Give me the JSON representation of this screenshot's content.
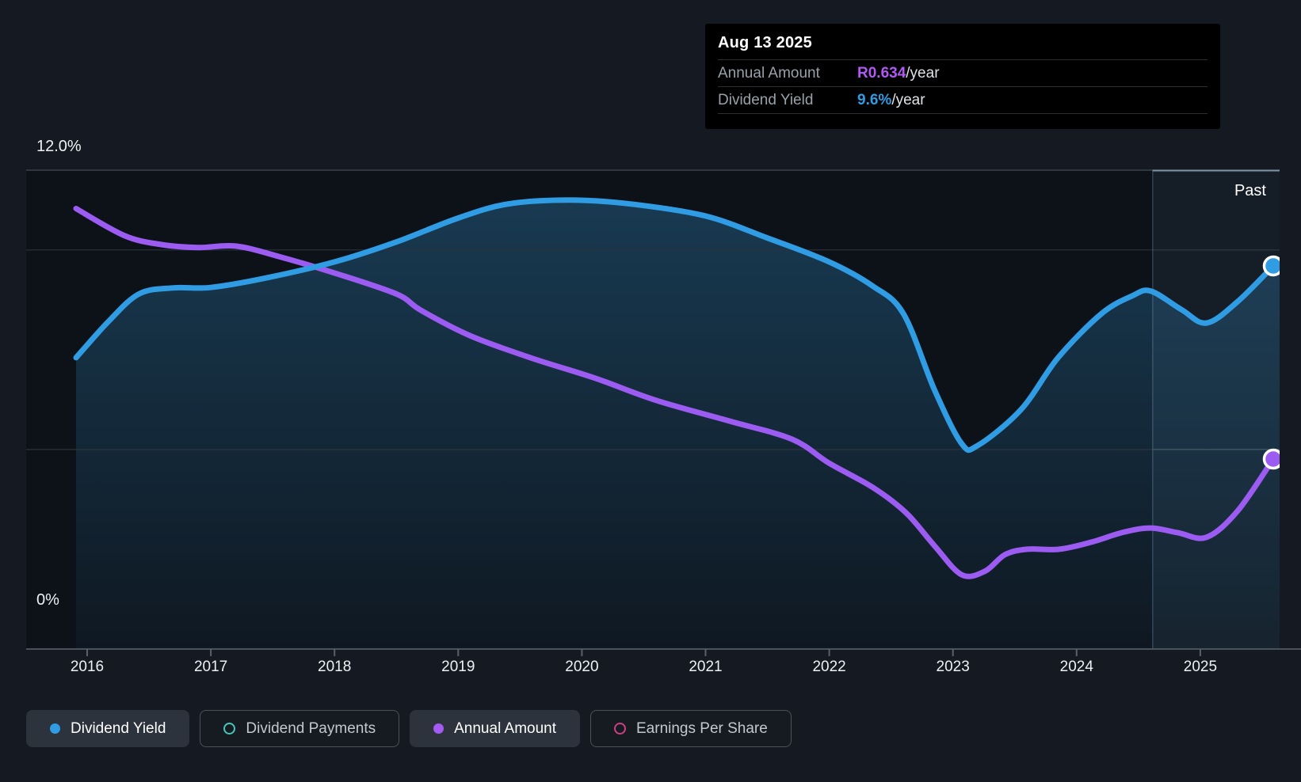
{
  "tooltip": {
    "date": "Aug 13 2025",
    "rows": [
      {
        "label": "Annual Amount",
        "value": "R0.634",
        "suffix": "/year",
        "color": "#b158f5"
      },
      {
        "label": "Dividend Yield",
        "value": "9.6%",
        "suffix": "/year",
        "color": "#2f9ce4"
      }
    ]
  },
  "axes": {
    "y_top_label": "12.0%",
    "y_bottom_label": "0%",
    "x_labels": [
      "2016",
      "2017",
      "2018",
      "2019",
      "2020",
      "2021",
      "2022",
      "2023",
      "2024",
      "2025"
    ]
  },
  "past_label": "Past",
  "legend": [
    {
      "label": "Dividend Yield",
      "marker": "filled",
      "color": "#2f9ce4",
      "active": true
    },
    {
      "label": "Dividend Payments",
      "marker": "ring",
      "color": "#45c8ba",
      "active": false
    },
    {
      "label": "Annual Amount",
      "marker": "filled",
      "color": "#a55af3",
      "active": true
    },
    {
      "label": "Earnings Per Share",
      "marker": "ring",
      "color": "#ce3f83",
      "active": false
    }
  ],
  "chart_data": {
    "type": "line",
    "title": "Dividend yield and annual amount over time",
    "x_axis": {
      "ticks": [
        2016,
        2017,
        2018,
        2019,
        2020,
        2021,
        2022,
        2023,
        2024,
        2025
      ]
    },
    "y_axis_left": {
      "unit": "%",
      "min": 0,
      "max": 12,
      "gridlines_pct": [
        12,
        10,
        5,
        0
      ]
    },
    "past_band_start_year": 2024.615,
    "grid": true,
    "legend_position": "bottom",
    "series": [
      {
        "name": "Dividend Yield",
        "unit": "%",
        "color": "#2f9ce4",
        "area_fill": true,
        "end_marker": true,
        "points": [
          [
            2015.91,
            7.3
          ],
          [
            2016.17,
            8.2
          ],
          [
            2016.42,
            8.9
          ],
          [
            2016.7,
            9.05
          ],
          [
            2017.0,
            9.06
          ],
          [
            2017.45,
            9.3
          ],
          [
            2018.0,
            9.7
          ],
          [
            2018.5,
            10.2
          ],
          [
            2019.0,
            10.8
          ],
          [
            2019.4,
            11.15
          ],
          [
            2019.9,
            11.25
          ],
          [
            2020.4,
            11.15
          ],
          [
            2021.0,
            10.85
          ],
          [
            2021.5,
            10.3
          ],
          [
            2022.0,
            9.7
          ],
          [
            2022.35,
            9.1
          ],
          [
            2022.6,
            8.4
          ],
          [
            2022.85,
            6.5
          ],
          [
            2023.07,
            5.15
          ],
          [
            2023.2,
            5.1
          ],
          [
            2023.55,
            6.0
          ],
          [
            2023.85,
            7.3
          ],
          [
            2024.2,
            8.4
          ],
          [
            2024.45,
            8.85
          ],
          [
            2024.6,
            8.97
          ],
          [
            2024.85,
            8.5
          ],
          [
            2025.05,
            8.17
          ],
          [
            2025.3,
            8.7
          ],
          [
            2025.59,
            9.6
          ]
        ]
      },
      {
        "name": "Annual Amount",
        "unit": "R/year",
        "color": "#9c5cf2",
        "area_fill": false,
        "end_marker": true,
        "points": [
          [
            2015.91,
            1.47
          ],
          [
            2016.3,
            1.38
          ],
          [
            2016.6,
            1.35
          ],
          [
            2016.9,
            1.34
          ],
          [
            2017.2,
            1.345
          ],
          [
            2017.55,
            1.31
          ],
          [
            2018.0,
            1.255
          ],
          [
            2018.5,
            1.185
          ],
          [
            2018.7,
            1.13
          ],
          [
            2019.1,
            1.045
          ],
          [
            2019.6,
            0.97
          ],
          [
            2020.1,
            0.905
          ],
          [
            2020.6,
            0.83
          ],
          [
            2021.2,
            0.76
          ],
          [
            2021.7,
            0.7
          ],
          [
            2022.0,
            0.62
          ],
          [
            2022.35,
            0.54
          ],
          [
            2022.62,
            0.455
          ],
          [
            2022.85,
            0.345
          ],
          [
            2023.07,
            0.248
          ],
          [
            2023.26,
            0.26
          ],
          [
            2023.42,
            0.315
          ],
          [
            2023.6,
            0.333
          ],
          [
            2023.86,
            0.333
          ],
          [
            2024.12,
            0.357
          ],
          [
            2024.38,
            0.39
          ],
          [
            2024.6,
            0.404
          ],
          [
            2024.82,
            0.388
          ],
          [
            2025.05,
            0.373
          ],
          [
            2025.3,
            0.46
          ],
          [
            2025.59,
            0.634
          ]
        ]
      }
    ]
  }
}
